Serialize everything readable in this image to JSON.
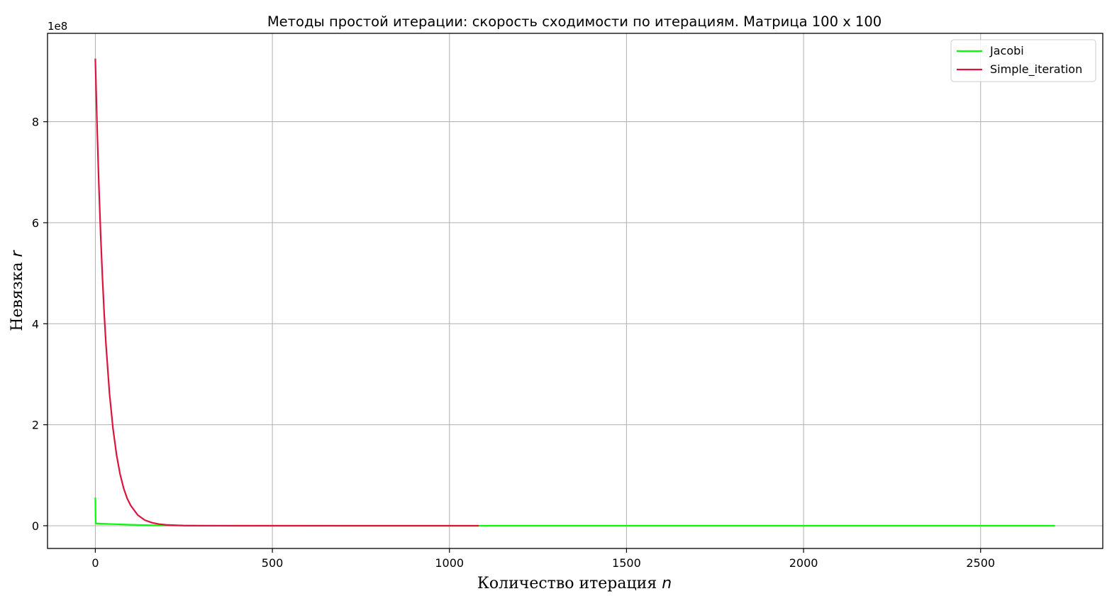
{
  "chart_data": {
    "type": "line",
    "title": "Методы простой итерации: скорость сходимости по итерациям. Матрица 100 х 100",
    "xlabel": "Количество итерация ",
    "xlabel_var": "n",
    "ylabel": "Невязка ",
    "ylabel_var": "r",
    "y_offset_label": "1e8",
    "y_scale": 100000000,
    "xlim": [
      -135,
      2845
    ],
    "ylim": [
      -45000000,
      975000000
    ],
    "x_ticks": [
      0,
      500,
      1000,
      1500,
      2000,
      2500
    ],
    "x_tick_labels": [
      "0",
      "500",
      "1000",
      "1500",
      "2000",
      "2500"
    ],
    "y_ticks": [
      0,
      200000000,
      400000000,
      600000000,
      800000000
    ],
    "y_tick_labels": [
      "0",
      "2",
      "4",
      "6",
      "8"
    ],
    "grid": true,
    "legend_position": "top-right",
    "series": [
      {
        "name": "Jacobi",
        "color": "#00ff00",
        "x": [
          0,
          1,
          2,
          20,
          50,
          100,
          150,
          200,
          300,
          500,
          1000,
          1500,
          2000,
          2500,
          2710
        ],
        "y": [
          56000000,
          5000000,
          4500000,
          4000000,
          3200000,
          2000000,
          1000000,
          500000,
          150000,
          20000,
          0,
          0,
          0,
          0,
          0
        ]
      },
      {
        "name": "Simple_iteration",
        "color": "#dc143c",
        "x": [
          0,
          5,
          10,
          15,
          20,
          25,
          30,
          40,
          50,
          60,
          70,
          80,
          90,
          100,
          120,
          140,
          160,
          180,
          200,
          250,
          300,
          400,
          500,
          700,
          1000,
          1083
        ],
        "y": [
          925000000,
          790000000,
          675000000,
          577000000,
          493000000,
          421000000,
          360000000,
          262000000,
          192000000,
          140000000,
          102000000,
          74000000,
          54000000,
          40000000,
          21000000,
          11000000,
          6000000,
          3200000,
          1700000,
          350000,
          75000,
          4000,
          200,
          0,
          0,
          0
        ]
      }
    ]
  }
}
